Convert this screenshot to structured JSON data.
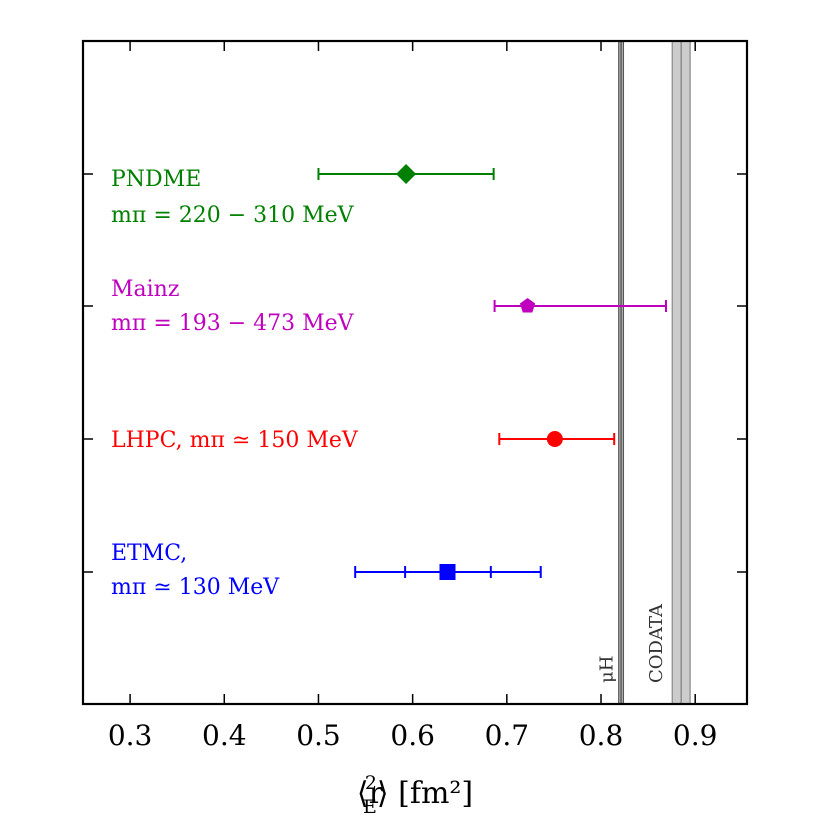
{
  "chart_data": {
    "type": "scatter",
    "title": "",
    "xlabel_parts": {
      "open": "⟨r",
      "sup": "2",
      "sub": "E",
      "close": "⟩ [fm²]"
    },
    "ylabel": "",
    "xlim": [
      0.25,
      0.955
    ],
    "xticks": [
      0.3,
      0.4,
      0.5,
      0.6,
      0.7,
      0.8,
      0.9
    ],
    "xtick_labels": [
      "0.3",
      "0.4",
      "0.5",
      "0.6",
      "0.7",
      "0.8",
      "0.9"
    ],
    "grid": false,
    "series": [
      {
        "name": "PNDME",
        "label_lines": [
          "PNDME",
          "mπ = 220 − 310 MeV"
        ],
        "color": "#008000",
        "marker": "diamond",
        "x": 0.593,
        "x_low": 0.5,
        "x_high": 0.686,
        "inner_low": null,
        "inner_high": null
      },
      {
        "name": "Mainz",
        "label_lines": [
          "Mainz",
          "mπ = 193 − 473 MeV"
        ],
        "color": "#bf00bf",
        "marker": "pentagon",
        "x": 0.722,
        "x_low": 0.687,
        "x_high": 0.869,
        "inner_low": null,
        "inner_high": null
      },
      {
        "name": "LHPC",
        "label_lines": [
          "LHPC, mπ ≃ 150 MeV"
        ],
        "color": "#ff0000",
        "marker": "circle",
        "x": 0.751,
        "x_low": 0.692,
        "x_high": 0.814,
        "inner_low": null,
        "inner_high": null
      },
      {
        "name": "ETMC",
        "label_lines": [
          "ETMC,",
          "mπ ≃ 130 MeV"
        ],
        "color": "#0000ff",
        "marker": "square",
        "x": 0.637,
        "x_low": 0.539,
        "x_high": 0.736,
        "inner_low": 0.592,
        "inner_high": 0.683
      }
    ],
    "reference_bands": [
      {
        "name": "μH",
        "label": "μH",
        "center": 0.8213,
        "halfwidth": 0.0025,
        "fill": "#bbbbbb",
        "line": "#555555"
      },
      {
        "name": "CODATA",
        "label": "CODATA",
        "center": 0.8851,
        "halfwidth": 0.0095,
        "fill": "#cccccc",
        "line": "#888888"
      }
    ]
  }
}
